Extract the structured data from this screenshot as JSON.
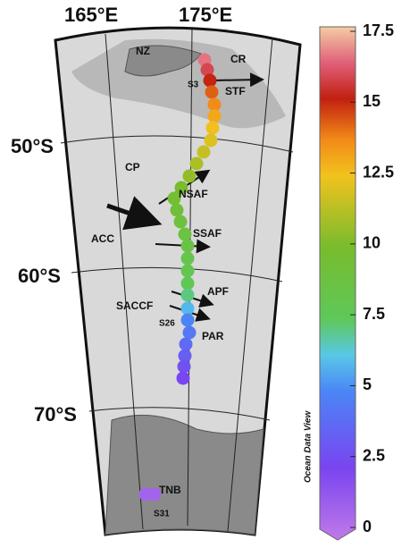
{
  "map": {
    "lon_labels": [
      "165°E",
      "175°E"
    ],
    "lat_labels": [
      "50°S",
      "60°S",
      "70°S"
    ],
    "labels": [
      "NZ",
      "CR",
      "S3",
      "STF",
      "CP",
      "NSAF",
      "ACC",
      "SSAF",
      "APF",
      "SACCF",
      "S26",
      "PAR",
      "TNB",
      "S31"
    ]
  },
  "colorbar": {
    "label": "Ocean Data View",
    "lim": [
      0,
      17.5
    ],
    "ticks": [
      0,
      2.5,
      5,
      7.5,
      10,
      12.5,
      15,
      17.5
    ]
  },
  "stations": {
    "values": [
      16.5,
      15.8,
      15,
      14.2,
      13.6,
      13,
      12.5,
      12,
      11.5,
      11,
      10.5,
      10,
      9.6,
      9.3,
      9,
      8.8,
      8.5,
      8.2,
      8,
      7.7,
      7.2,
      6,
      5,
      4.5,
      4,
      3.5,
      3,
      2.5,
      1,
      1
    ]
  }
}
